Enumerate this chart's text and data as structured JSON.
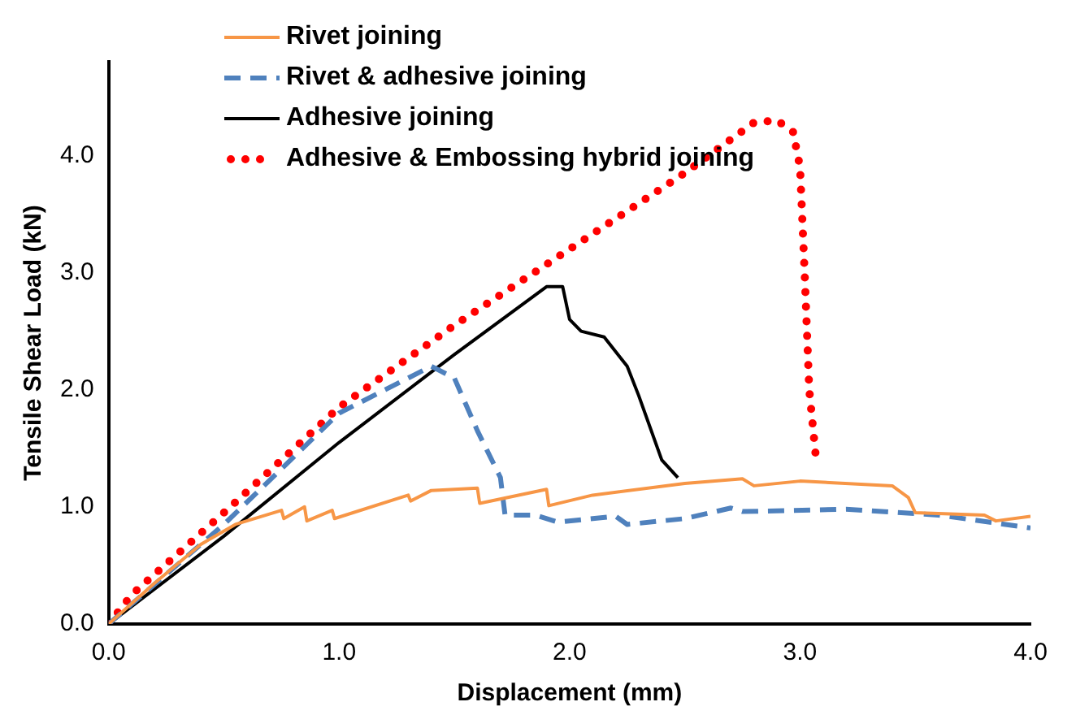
{
  "chart_data": {
    "type": "line",
    "xlabel": "Displacement (mm)",
    "ylabel": "Tensile Shear Load (kN)",
    "xlim": [
      0,
      4
    ],
    "ylim": [
      0,
      4.8
    ],
    "xticks": [
      {
        "value": 0,
        "label": "0.0"
      },
      {
        "value": 1,
        "label": "1.0"
      },
      {
        "value": 2,
        "label": "2.0"
      },
      {
        "value": 3,
        "label": "3.0"
      },
      {
        "value": 4,
        "label": "4.0"
      }
    ],
    "yticks": [
      {
        "value": 0,
        "label": "0.0"
      },
      {
        "value": 1,
        "label": "1.0"
      },
      {
        "value": 2,
        "label": "2.0"
      },
      {
        "value": 3,
        "label": "3.0"
      },
      {
        "value": 4,
        "label": "4.0"
      }
    ],
    "grid": false,
    "legend": "top left",
    "marker": "none",
    "series": [
      {
        "name": "Rivet joining",
        "color": "#f79646",
        "line_style": "solid",
        "x": [
          0,
          0.2,
          0.4,
          0.55,
          0.75,
          0.76,
          0.85,
          0.86,
          0.97,
          0.98,
          1.3,
          1.31,
          1.4,
          1.6,
          1.61,
          1.9,
          1.91,
          2.1,
          2.5,
          2.75,
          2.8,
          3.0,
          3.4,
          3.47,
          3.5,
          3.8,
          3.85,
          4.0
        ],
        "values": [
          0,
          0.35,
          0.68,
          0.85,
          0.97,
          0.9,
          1.0,
          0.88,
          0.97,
          0.9,
          1.1,
          1.05,
          1.14,
          1.16,
          1.03,
          1.15,
          1.01,
          1.1,
          1.2,
          1.24,
          1.18,
          1.22,
          1.18,
          1.08,
          0.95,
          0.93,
          0.88,
          0.92
        ]
      },
      {
        "name": "Rivet & adhesive joining",
        "color": "#4f81bd",
        "line_style": "dashed",
        "x": [
          0,
          0.5,
          1.0,
          1.2,
          1.4,
          1.5,
          1.6,
          1.7,
          1.72,
          1.85,
          1.95,
          2.2,
          2.25,
          2.5,
          2.7,
          2.75,
          3.2,
          3.6,
          4.0
        ],
        "values": [
          0,
          0.85,
          1.8,
          2.0,
          2.2,
          2.1,
          1.65,
          1.25,
          0.93,
          0.93,
          0.87,
          0.92,
          0.85,
          0.9,
          0.99,
          0.96,
          0.98,
          0.93,
          0.82
        ]
      },
      {
        "name": "Adhesive joining",
        "color": "#000000",
        "line_style": "solid",
        "x": [
          0,
          0.5,
          1.0,
          1.5,
          1.9,
          1.97,
          2.0,
          2.05,
          2.15,
          2.25,
          2.3,
          2.4,
          2.47
        ],
        "values": [
          0,
          0.75,
          1.55,
          2.3,
          2.88,
          2.88,
          2.6,
          2.5,
          2.45,
          2.2,
          1.95,
          1.4,
          1.25
        ]
      },
      {
        "name": "Adhesive & Embossing hybrid joining",
        "color": "#ff0000",
        "line_style": "dotted",
        "x": [
          0,
          0.1,
          0.5,
          1.0,
          1.5,
          2.0,
          2.5,
          2.8,
          2.9,
          2.97,
          3.0,
          3.02,
          3.04,
          3.07
        ],
        "values": [
          0,
          0.25,
          0.95,
          1.85,
          2.55,
          3.2,
          3.85,
          4.28,
          4.3,
          4.2,
          3.9,
          3.0,
          2.0,
          1.4
        ]
      }
    ]
  }
}
